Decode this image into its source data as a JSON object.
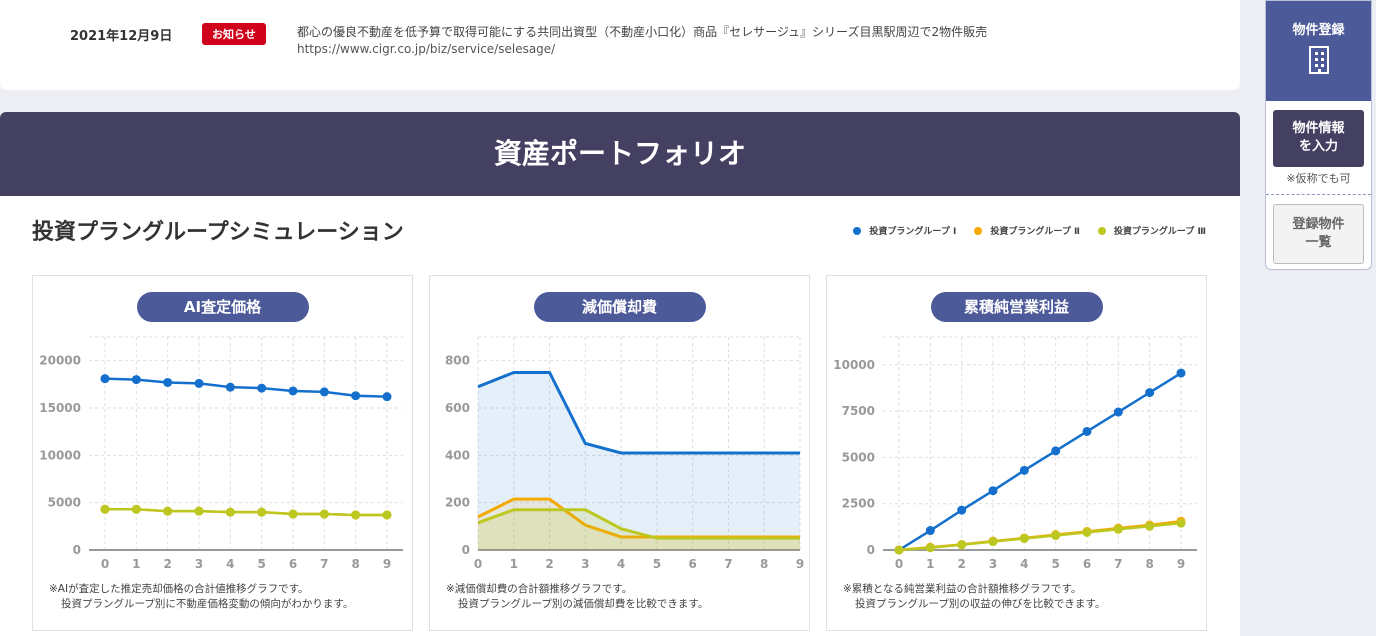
{
  "news": {
    "date": "2021年12月9日",
    "badge": "お知らせ",
    "title": "都心の優良不動産を低予算で取得可能にする共同出資型（不動産小口化）商品『セレサージュ』シリーズ目黒駅周辺で2物件販売",
    "url": "https://www.cigr.co.jp/biz/service/selesage/"
  },
  "band_title": "資産ポートフォリオ",
  "section_title": "投資プラングループシミュレーション",
  "legend": [
    {
      "label": "投資プラングループ Ⅰ",
      "color": "#1470cc"
    },
    {
      "label": "投資プラングループ Ⅱ",
      "color": "#f5a800"
    },
    {
      "label": "投資プラングループ Ⅲ",
      "color": "#bcc820"
    }
  ],
  "sidebar": {
    "header": "物件登録",
    "icon": "building-icon",
    "input_line1": "物件情報",
    "input_line2": "を入力",
    "note": "※仮称でも可",
    "list_line1": "登録物件",
    "list_line2": "一覧"
  },
  "chart_data": [
    {
      "type": "line",
      "title": "AI査定価格",
      "x": [
        0,
        1,
        2,
        3,
        4,
        5,
        6,
        7,
        8,
        9
      ],
      "ylim": [
        0,
        22500
      ],
      "yticks": [
        0,
        5000,
        10000,
        15000,
        20000
      ],
      "grid": true,
      "area": false,
      "series": [
        {
          "name": "投資プラングループ Ⅰ",
          "values": [
            18100,
            18000,
            17700,
            17600,
            17200,
            17100,
            16800,
            16700,
            16300,
            16200
          ]
        },
        {
          "name": "投資プラングループ Ⅱ",
          "values": [
            4300,
            4300,
            4100,
            4100,
            4000,
            4000,
            3800,
            3800,
            3700,
            3700
          ]
        },
        {
          "name": "投資プラングループ Ⅲ",
          "values": [
            4300,
            4300,
            4100,
            4100,
            4000,
            4000,
            3800,
            3800,
            3700,
            3700
          ]
        }
      ],
      "note1": "※AIが査定した推定売却価格の合計値推移グラフです。",
      "note2": "投資プラングループ別に不動産価格変動の傾向がわかります。"
    },
    {
      "type": "area",
      "title": "減価償却費",
      "x": [
        0,
        1,
        2,
        3,
        4,
        5,
        6,
        7,
        8,
        9
      ],
      "ylim": [
        0,
        900
      ],
      "yticks": [
        0,
        200,
        400,
        600,
        800
      ],
      "grid": true,
      "area": true,
      "series": [
        {
          "name": "投資プラングループ Ⅰ",
          "values": [
            690,
            750,
            750,
            450,
            410,
            410,
            410,
            410,
            410,
            410
          ]
        },
        {
          "name": "投資プラングループ Ⅱ",
          "values": [
            140,
            215,
            215,
            105,
            55,
            55,
            55,
            55,
            55,
            55
          ]
        },
        {
          "name": "投資プラングループ Ⅲ",
          "values": [
            115,
            170,
            170,
            170,
            90,
            50,
            50,
            50,
            50,
            50
          ]
        }
      ],
      "note1": "※減価償却費の合計額推移グラフです。",
      "note2": "投資プラングループ別の減価償却費を比較できます。"
    },
    {
      "type": "line",
      "title": "累積純営業利益",
      "x": [
        0,
        1,
        2,
        3,
        4,
        5,
        6,
        7,
        8,
        9
      ],
      "ylim": [
        0,
        11500
      ],
      "yticks": [
        0,
        2500,
        5000,
        7500,
        10000
      ],
      "grid": true,
      "area": false,
      "series": [
        {
          "name": "投資プラングループ Ⅰ",
          "values": [
            0,
            1050,
            2150,
            3200,
            4300,
            5350,
            6400,
            7450,
            8500,
            9550
          ]
        },
        {
          "name": "投資プラングループ Ⅱ",
          "values": [
            0,
            150,
            300,
            480,
            650,
            830,
            1000,
            1180,
            1350,
            1550
          ]
        },
        {
          "name": "投資プラングループ Ⅲ",
          "values": [
            0,
            120,
            280,
            450,
            620,
            780,
            950,
            1120,
            1280,
            1450
          ]
        }
      ],
      "note1": "※累積となる純営業利益の合計額推移グラフです。",
      "note2": "投資プラングループ別の収益の伸びを比較できます。"
    }
  ]
}
